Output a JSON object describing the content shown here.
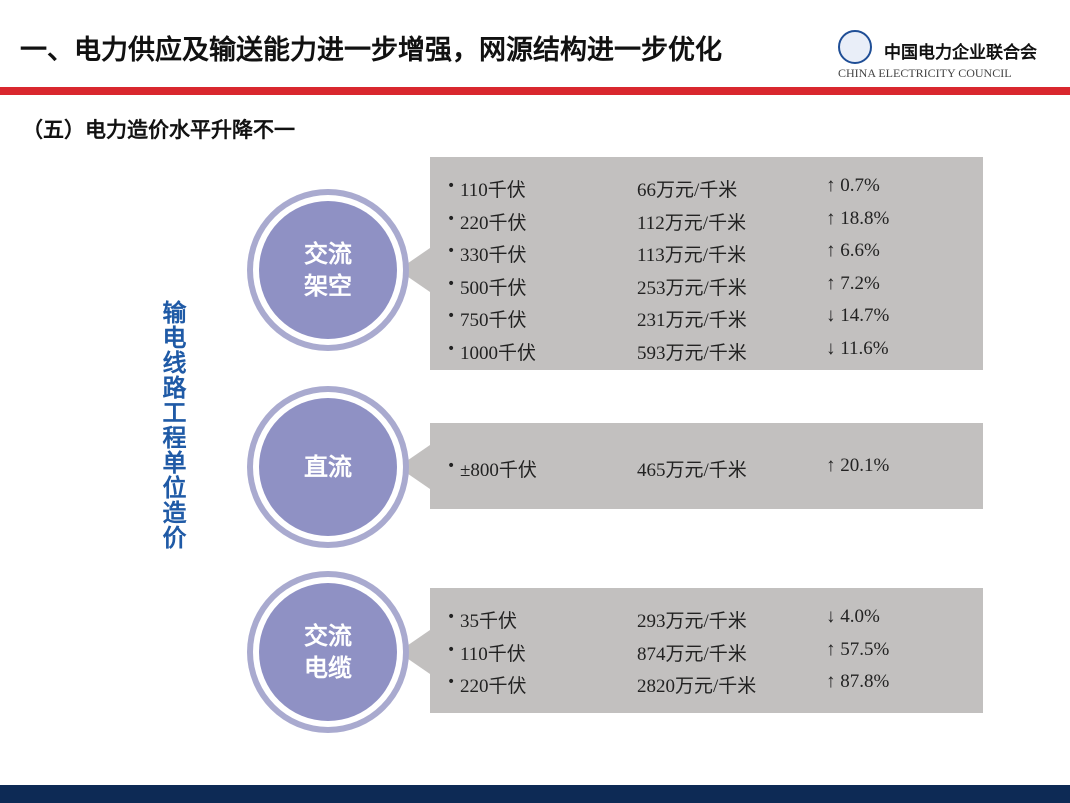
{
  "header": {
    "title": "一、电力供应及输送能力进一步增强，网源结构进一步优化",
    "org_name": "中国电力企业联合会",
    "org_english": "CHINA ELECTRICITY COUNCIL"
  },
  "section": {
    "title": "（五）电力造价水平升降不一",
    "side_label": "输电线路工程单位造价"
  },
  "groups": [
    {
      "label": [
        "交流",
        "架空"
      ],
      "rows": [
        [
          "110千伏",
          "66万元/千米",
          "↑ 0.7%"
        ],
        [
          "220千伏",
          "112万元/千米",
          "↑ 18.8%"
        ],
        [
          "330千伏",
          "113万元/千米",
          "↑ 6.6%"
        ],
        [
          "500千伏",
          "253万元/千米",
          "↑ 7.2%"
        ],
        [
          "750千伏",
          "231万元/千米",
          "↓ 14.7%"
        ],
        [
          "1000千伏",
          "593万元/千米",
          "↓ 11.6%"
        ]
      ]
    },
    {
      "label": [
        "直流"
      ],
      "rows": [
        [
          "±800千伏",
          "465万元/千米",
          "↑ 20.1%"
        ]
      ]
    },
    {
      "label": [
        "交流",
        "电缆"
      ],
      "rows": [
        [
          "35千伏",
          "293万元/千米",
          "↓ 4.0%"
        ],
        [
          "110千伏",
          "874万元/千米",
          "↑ 57.5%"
        ],
        [
          "220千伏",
          "2820万元/千米",
          "↑ 87.8%"
        ]
      ]
    }
  ]
}
